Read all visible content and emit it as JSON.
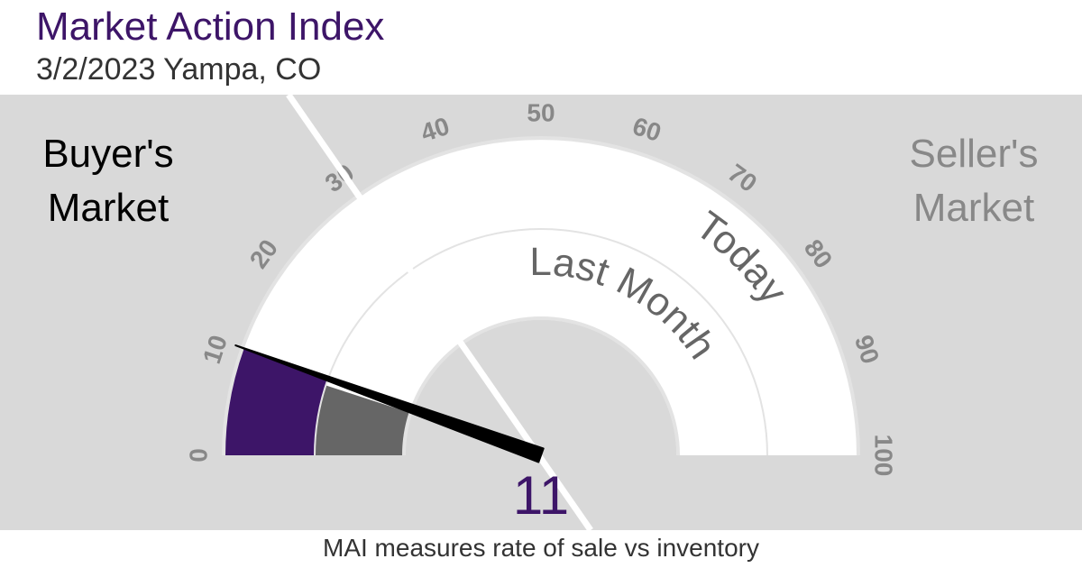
{
  "chart_data": {
    "type": "gauge",
    "title": "Market Action Index",
    "subtitle": "3/2/2023 Yampa, CO",
    "left_label": [
      "Buyer's",
      "Market"
    ],
    "right_label": [
      "Seller's",
      "Market"
    ],
    "footer": "MAI measures rate of sale vs inventory",
    "ylim": [
      0,
      100
    ],
    "yticks": [
      0,
      10,
      20,
      30,
      40,
      50,
      60,
      70,
      80,
      90,
      100
    ],
    "series": [
      {
        "name": "Today",
        "color": "#3d1568",
        "values": [
          11
        ]
      },
      {
        "name": "Last Month",
        "color": "#666666",
        "values": [
          10
        ]
      }
    ]
  }
}
